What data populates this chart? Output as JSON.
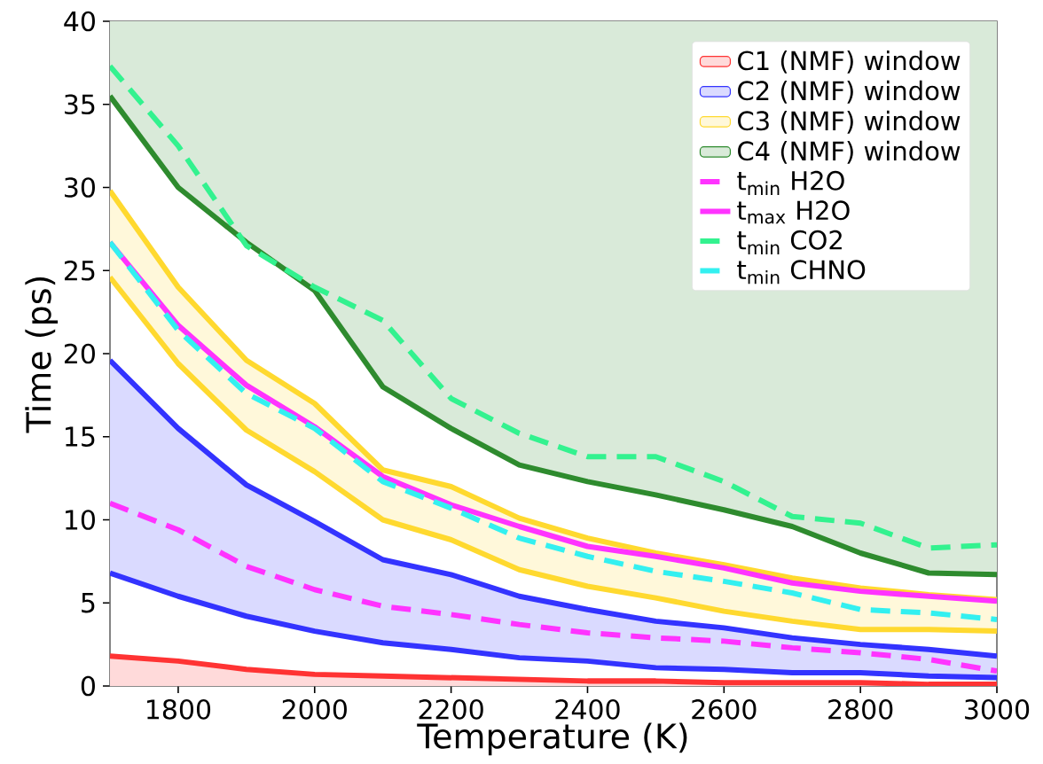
{
  "chart_data": {
    "type": "line",
    "xlabel": "Temperature (K)",
    "ylabel": "Time (ps)",
    "x": [
      1700,
      1800,
      1900,
      2000,
      2100,
      2200,
      2300,
      2400,
      2500,
      2600,
      2700,
      2800,
      2900,
      3000
    ],
    "xlim": [
      1700,
      3000
    ],
    "xticks": [
      1800,
      2000,
      2200,
      2400,
      2600,
      2800,
      3000
    ],
    "ylim": [
      0,
      40
    ],
    "yticks": [
      0,
      5,
      10,
      15,
      20,
      25,
      30,
      35,
      40
    ],
    "legend": "top right",
    "grid": false,
    "series": [
      {
        "name": "C1 (NMF) window",
        "type": "area",
        "color": "#ff3333",
        "values": [
          1.8,
          1.5,
          1.0,
          0.7,
          0.6,
          0.5,
          0.4,
          0.3,
          0.3,
          0.2,
          0.2,
          0.2,
          0.1,
          0.1
        ]
      },
      {
        "name": "C2 (NMF) window",
        "color": "#3333ff",
        "values": [
          19.6,
          15.5,
          12.1,
          9.9,
          7.6,
          6.7,
          5.4,
          4.6,
          3.9,
          3.5,
          2.9,
          2.5,
          2.2,
          1.8
        ],
        "lower": [
          6.8,
          5.4,
          4.2,
          3.3,
          2.6,
          2.2,
          1.7,
          1.5,
          1.1,
          1.0,
          0.8,
          0.8,
          0.6,
          0.5
        ],
        "upper": [
          19.6,
          15.5,
          12.1,
          9.9,
          7.6,
          6.7,
          5.4,
          4.6,
          3.9,
          3.5,
          2.9,
          2.5,
          2.2,
          1.8
        ]
      },
      {
        "name": "C3 (NMF) window",
        "color": "#ffd92f",
        "values": [
          29.8,
          24.0,
          19.6,
          17.0,
          13.0,
          12.0,
          10.1,
          8.9,
          8.0,
          7.3,
          6.5,
          5.9,
          5.5,
          5.2
        ],
        "lower": [
          24.6,
          19.4,
          15.4,
          12.9,
          10.0,
          8.8,
          7.0,
          6.0,
          5.3,
          4.5,
          3.9,
          3.4,
          3.4,
          3.3
        ],
        "upper": [
          29.8,
          24.0,
          19.6,
          17.0,
          13.0,
          12.0,
          10.1,
          8.9,
          8.0,
          7.3,
          6.5,
          5.9,
          5.5,
          5.2
        ]
      },
      {
        "name": "C4 (NMF) window",
        "color": "#2e8b2e",
        "values": [
          35.5,
          30.0,
          26.7,
          23.8,
          18.0,
          15.5,
          13.3,
          12.3,
          11.5,
          10.6,
          9.6,
          8.0,
          6.8,
          6.7
        ],
        "lower": [
          35.5,
          30.0,
          26.7,
          23.8,
          18.0,
          15.5,
          13.3,
          12.3,
          11.5,
          10.6,
          9.6,
          8.0,
          6.8,
          6.7
        ],
        "upper": [
          40,
          40,
          40,
          40,
          40,
          40,
          40,
          40,
          40,
          40,
          40,
          40,
          40,
          40
        ]
      },
      {
        "color": "#3333ff",
        "values": [
          6.8,
          5.4,
          4.2,
          3.3,
          2.6,
          2.2,
          1.7,
          1.5,
          1.1,
          1.0,
          0.8,
          0.8,
          0.6,
          0.5
        ]
      },
      {
        "color": "#ffd92f",
        "values": [
          24.6,
          19.4,
          15.4,
          12.9,
          10.0,
          8.8,
          7.0,
          6.0,
          5.3,
          4.5,
          3.9,
          3.4,
          3.4,
          3.3
        ]
      },
      {
        "name": "t$_{min}$ H2O",
        "line_style": "dashed",
        "color": "#ff33ff",
        "values": [
          11.0,
          9.4,
          7.2,
          5.8,
          4.8,
          4.3,
          3.7,
          3.2,
          2.9,
          2.7,
          2.3,
          2.0,
          1.6,
          0.9
        ]
      },
      {
        "name": "t$_{max}$ H2O",
        "line_style": "solid",
        "color": "#ff33ff",
        "values": [
          26.7,
          21.7,
          18.1,
          15.6,
          12.6,
          10.9,
          9.6,
          8.4,
          7.8,
          7.1,
          6.2,
          5.7,
          5.4,
          5.1
        ]
      },
      {
        "name": "t$_{min}$ CO2",
        "line_style": "dashed",
        "color": "#33f28f",
        "values": [
          37.3,
          32.5,
          26.5,
          24.0,
          22.0,
          17.3,
          15.2,
          13.8,
          13.8,
          12.3,
          10.2,
          9.8,
          8.3,
          8.5
        ]
      },
      {
        "name": "t$_{min}$ CHNO",
        "line_style": "dashed",
        "color": "#33f0f0",
        "values": [
          26.7,
          21.4,
          17.6,
          15.5,
          12.3,
          10.7,
          8.9,
          7.8,
          6.9,
          6.3,
          5.6,
          4.6,
          4.4,
          4.0
        ]
      }
    ]
  }
}
